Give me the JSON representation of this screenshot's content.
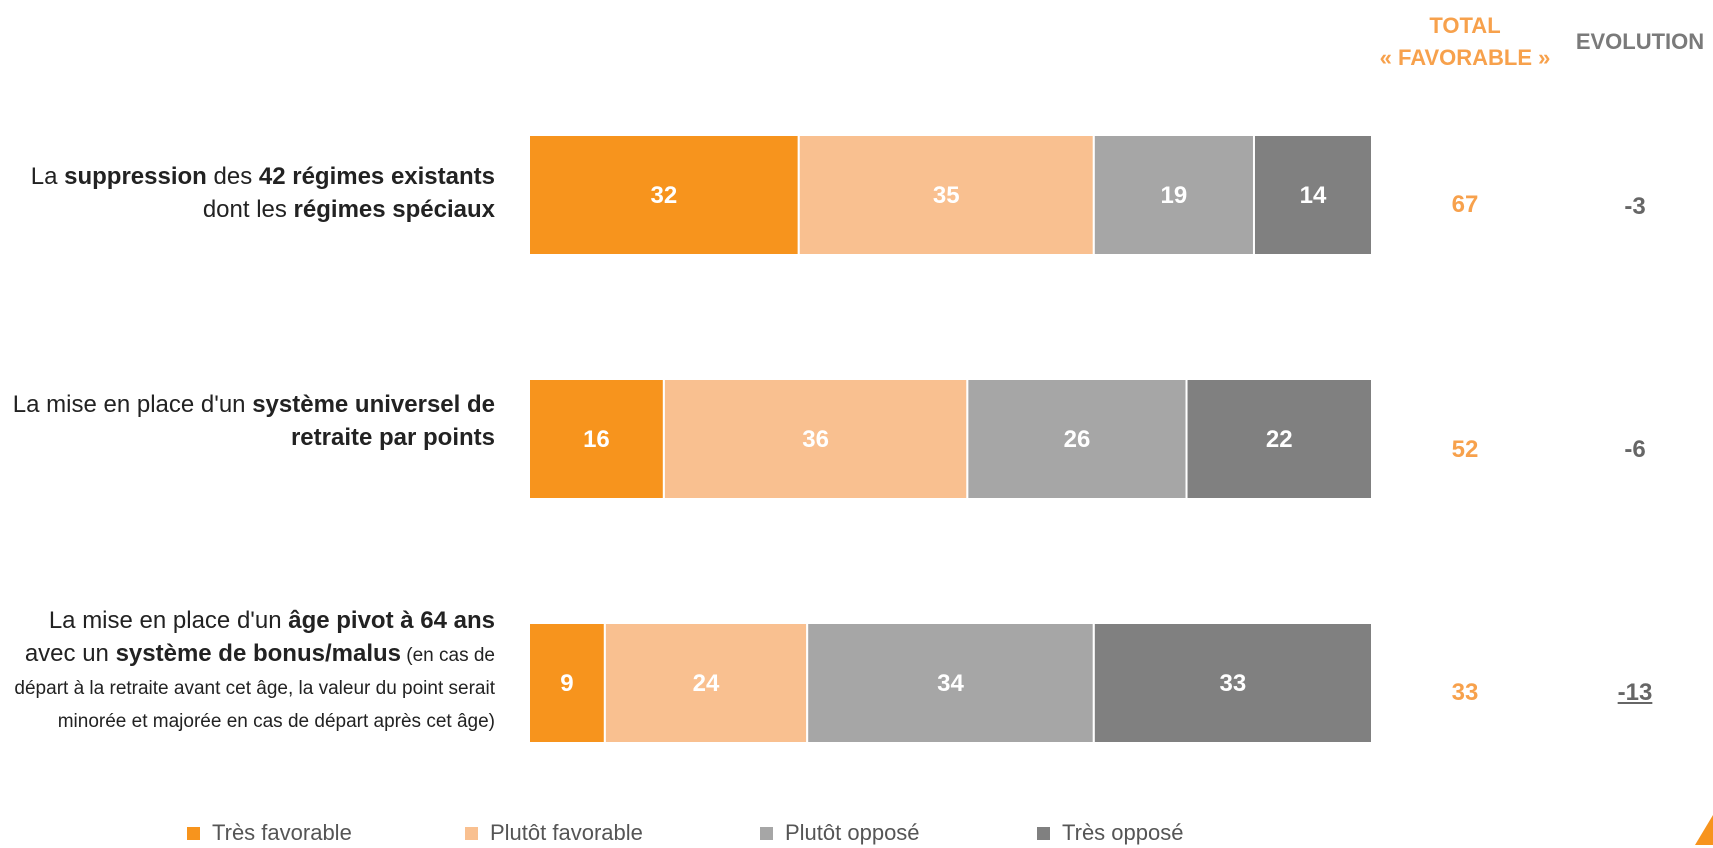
{
  "header": {
    "total_line1": "TOTAL",
    "total_line2": "« FAVORABLE »",
    "evolution": "EVOLUTION"
  },
  "rows": [
    {
      "label_parts": [
        {
          "t": "La ",
          "b": false
        },
        {
          "t": "suppression",
          "b": true
        },
        {
          "t": " des ",
          "b": false
        },
        {
          "t": "42 régimes existants",
          "b": true
        },
        {
          "t": " dont les ",
          "b": false
        },
        {
          "t": "régimes spéciaux",
          "b": true
        }
      ],
      "total": "67",
      "evolution": "-3",
      "evolution_underlined": false
    },
    {
      "label_parts": [
        {
          "t": "La mise en place d'un ",
          "b": false
        },
        {
          "t": "système universel de retraite par points",
          "b": true
        }
      ],
      "total": "52",
      "evolution": "-6",
      "evolution_underlined": false
    },
    {
      "label_parts": [
        {
          "t": "La mise en place d'un ",
          "b": false
        },
        {
          "t": "âge pivot à 64 ans",
          "b": true
        },
        {
          "t": " avec un ",
          "b": false
        },
        {
          "t": "système de bonus/malus",
          "b": true
        },
        {
          "t": " (en cas de départ à la retraite avant cet âge, la valeur du point serait minorée et majorée en cas de départ après cet âge)",
          "b": false,
          "small": true
        }
      ],
      "total": "33",
      "evolution": "-13",
      "evolution_underlined": true
    }
  ],
  "chart_data": {
    "type": "bar",
    "orientation": "horizontal",
    "stacked": true,
    "categories": [
      "suppression des 42 régimes existants",
      "système universel de retraite par points",
      "âge pivot à 64 ans"
    ],
    "series": [
      {
        "name": "Très favorable",
        "values": [
          32,
          16,
          9
        ],
        "color": "#f7941d"
      },
      {
        "name": "Plutôt favorable",
        "values": [
          35,
          36,
          24
        ],
        "color": "#f9c090"
      },
      {
        "name": "Plutôt opposé",
        "values": [
          19,
          26,
          34
        ],
        "color": "#a6a6a6"
      },
      {
        "name": "Très opposé",
        "values": [
          14,
          22,
          33
        ],
        "color": "#808080"
      }
    ],
    "xlim": [
      0,
      100
    ],
    "legend": "bottom"
  }
}
